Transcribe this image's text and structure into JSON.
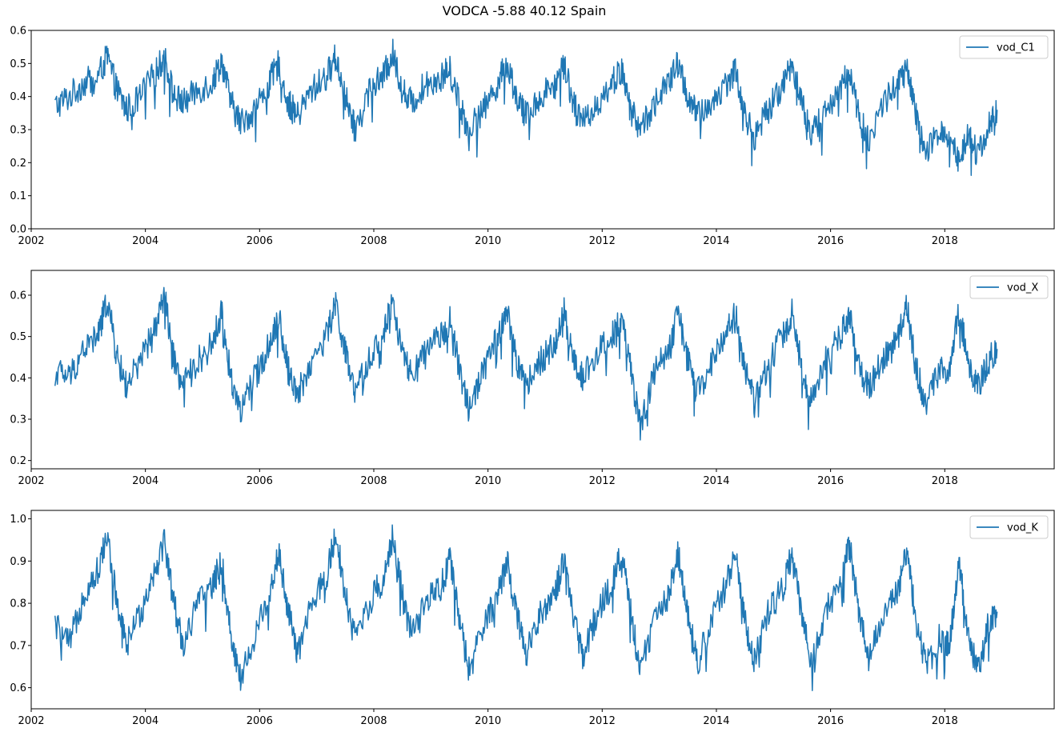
{
  "figure": {
    "title": "VODCA -5.88 40.12 Spain"
  },
  "chart_data": [
    {
      "type": "line",
      "series": [
        {
          "name": "vod_C1",
          "color": "#1f77b4",
          "x": [
            "2002-06",
            "2002-09",
            "2002-12",
            "2003-03",
            "2003-05",
            "2003-07",
            "2003-09",
            "2003-12",
            "2004-03",
            "2004-05",
            "2004-07",
            "2004-09",
            "2004-12",
            "2005-03",
            "2005-05",
            "2005-07",
            "2005-09",
            "2005-12",
            "2006-03",
            "2006-05",
            "2006-07",
            "2006-09",
            "2006-12",
            "2007-03",
            "2007-05",
            "2007-07",
            "2007-09",
            "2007-12",
            "2008-03",
            "2008-05",
            "2008-07",
            "2008-09",
            "2008-12",
            "2009-03",
            "2009-05",
            "2009-07",
            "2009-09",
            "2009-12",
            "2010-03",
            "2010-05",
            "2010-07",
            "2010-09",
            "2010-12",
            "2011-03",
            "2011-05",
            "2011-07",
            "2011-09",
            "2011-12",
            "2012-03",
            "2012-05",
            "2012-07",
            "2012-09",
            "2012-12",
            "2013-03",
            "2013-05",
            "2013-07",
            "2013-09",
            "2013-12",
            "2014-03",
            "2014-05",
            "2014-07",
            "2014-09",
            "2014-12",
            "2015-03",
            "2015-05",
            "2015-07",
            "2015-09",
            "2015-12",
            "2016-03",
            "2016-05",
            "2016-07",
            "2016-09",
            "2016-12",
            "2017-03",
            "2017-05",
            "2017-07",
            "2017-09",
            "2017-12",
            "2018-02",
            "2018-04",
            "2018-06",
            "2018-08",
            "2018-10",
            "2018-12"
          ],
          "y": [
            0.37,
            0.4,
            0.44,
            0.46,
            0.52,
            0.42,
            0.36,
            0.4,
            0.47,
            0.52,
            0.4,
            0.38,
            0.42,
            0.44,
            0.51,
            0.38,
            0.32,
            0.36,
            0.44,
            0.5,
            0.38,
            0.34,
            0.42,
            0.46,
            0.52,
            0.4,
            0.3,
            0.42,
            0.46,
            0.53,
            0.42,
            0.38,
            0.44,
            0.46,
            0.48,
            0.38,
            0.3,
            0.36,
            0.44,
            0.5,
            0.4,
            0.34,
            0.4,
            0.44,
            0.5,
            0.38,
            0.32,
            0.38,
            0.44,
            0.48,
            0.36,
            0.3,
            0.38,
            0.44,
            0.5,
            0.4,
            0.34,
            0.38,
            0.44,
            0.48,
            0.34,
            0.28,
            0.36,
            0.44,
            0.5,
            0.38,
            0.28,
            0.36,
            0.42,
            0.48,
            0.34,
            0.26,
            0.38,
            0.44,
            0.48,
            0.34,
            0.22,
            0.3,
            0.28,
            0.2,
            0.3,
            0.22,
            0.3,
            0.36
          ]
        }
      ],
      "ylim": [
        0.0,
        0.6
      ],
      "yticks": [
        "0.0",
        "0.1",
        "0.2",
        "0.3",
        "0.4",
        "0.5",
        "0.6"
      ],
      "xticks": [
        "2002",
        "2004",
        "2006",
        "2008",
        "2010",
        "2012",
        "2014",
        "2016",
        "2018"
      ],
      "xlim": [
        "2002-01",
        "2019-12"
      ],
      "legend": "top-right",
      "grid": false
    },
    {
      "type": "line",
      "series": [
        {
          "name": "vod_X",
          "color": "#1f77b4",
          "x": [
            "2002-06",
            "2002-09",
            "2002-12",
            "2003-03",
            "2003-05",
            "2003-07",
            "2003-09",
            "2003-12",
            "2004-03",
            "2004-05",
            "2004-07",
            "2004-09",
            "2004-12",
            "2005-03",
            "2005-05",
            "2005-07",
            "2005-09",
            "2005-12",
            "2006-03",
            "2006-05",
            "2006-07",
            "2006-09",
            "2006-12",
            "2007-03",
            "2007-05",
            "2007-07",
            "2007-09",
            "2007-12",
            "2008-03",
            "2008-05",
            "2008-07",
            "2008-09",
            "2008-12",
            "2009-03",
            "2009-05",
            "2009-07",
            "2009-09",
            "2009-12",
            "2010-03",
            "2010-05",
            "2010-07",
            "2010-09",
            "2010-12",
            "2011-03",
            "2011-05",
            "2011-07",
            "2011-09",
            "2011-12",
            "2012-03",
            "2012-05",
            "2012-07",
            "2012-09",
            "2012-12",
            "2013-03",
            "2013-05",
            "2013-07",
            "2013-09",
            "2013-12",
            "2014-03",
            "2014-05",
            "2014-07",
            "2014-09",
            "2014-12",
            "2015-03",
            "2015-05",
            "2015-07",
            "2015-09",
            "2015-12",
            "2016-03",
            "2016-05",
            "2016-07",
            "2016-09",
            "2016-12",
            "2017-03",
            "2017-05",
            "2017-07",
            "2017-09",
            "2017-12",
            "2018-02",
            "2018-04",
            "2018-06",
            "2018-08",
            "2018-10",
            "2018-12"
          ],
          "y": [
            0.42,
            0.4,
            0.47,
            0.5,
            0.59,
            0.45,
            0.38,
            0.44,
            0.52,
            0.6,
            0.44,
            0.38,
            0.44,
            0.48,
            0.56,
            0.4,
            0.32,
            0.4,
            0.48,
            0.55,
            0.42,
            0.36,
            0.44,
            0.5,
            0.58,
            0.46,
            0.36,
            0.44,
            0.52,
            0.58,
            0.46,
            0.4,
            0.46,
            0.5,
            0.54,
            0.42,
            0.32,
            0.42,
            0.5,
            0.56,
            0.44,
            0.38,
            0.44,
            0.48,
            0.56,
            0.44,
            0.4,
            0.46,
            0.5,
            0.54,
            0.42,
            0.28,
            0.42,
            0.46,
            0.56,
            0.44,
            0.36,
            0.44,
            0.5,
            0.56,
            0.42,
            0.34,
            0.44,
            0.5,
            0.56,
            0.42,
            0.34,
            0.44,
            0.5,
            0.56,
            0.42,
            0.38,
            0.44,
            0.5,
            0.58,
            0.42,
            0.34,
            0.42,
            0.42,
            0.56,
            0.44,
            0.38,
            0.44,
            0.47
          ]
        }
      ],
      "ylim": [
        0.18,
        0.66
      ],
      "yticks": [
        "0.2",
        "0.3",
        "0.4",
        "0.5",
        "0.6"
      ],
      "xticks": [
        "2002",
        "2004",
        "2006",
        "2008",
        "2010",
        "2012",
        "2014",
        "2016",
        "2018"
      ],
      "xlim": [
        "2002-01",
        "2019-12"
      ],
      "legend": "top-right",
      "grid": false
    },
    {
      "type": "line",
      "series": [
        {
          "name": "vod_K",
          "color": "#1f77b4",
          "x": [
            "2002-06",
            "2002-09",
            "2002-12",
            "2003-03",
            "2003-05",
            "2003-07",
            "2003-09",
            "2003-12",
            "2004-03",
            "2004-05",
            "2004-07",
            "2004-09",
            "2004-12",
            "2005-03",
            "2005-05",
            "2005-07",
            "2005-09",
            "2005-12",
            "2006-03",
            "2006-05",
            "2006-07",
            "2006-09",
            "2006-12",
            "2007-03",
            "2007-05",
            "2007-07",
            "2007-09",
            "2007-12",
            "2008-03",
            "2008-05",
            "2008-07",
            "2008-09",
            "2008-12",
            "2009-03",
            "2009-05",
            "2009-07",
            "2009-09",
            "2009-12",
            "2010-03",
            "2010-05",
            "2010-07",
            "2010-09",
            "2010-12",
            "2011-03",
            "2011-05",
            "2011-07",
            "2011-09",
            "2011-12",
            "2012-03",
            "2012-05",
            "2012-07",
            "2012-09",
            "2012-12",
            "2013-03",
            "2013-05",
            "2013-07",
            "2013-09",
            "2013-12",
            "2014-03",
            "2014-05",
            "2014-07",
            "2014-09",
            "2014-12",
            "2015-03",
            "2015-05",
            "2015-07",
            "2015-09",
            "2015-12",
            "2016-03",
            "2016-05",
            "2016-07",
            "2016-09",
            "2016-12",
            "2017-03",
            "2017-05",
            "2017-07",
            "2017-09",
            "2017-12",
            "2018-02",
            "2018-04",
            "2018-06",
            "2018-08",
            "2018-10",
            "2018-12"
          ],
          "y": [
            0.75,
            0.7,
            0.82,
            0.88,
            0.96,
            0.8,
            0.7,
            0.78,
            0.88,
            0.95,
            0.8,
            0.7,
            0.8,
            0.84,
            0.9,
            0.72,
            0.62,
            0.72,
            0.82,
            0.92,
            0.78,
            0.68,
            0.8,
            0.86,
            0.97,
            0.82,
            0.72,
            0.8,
            0.86,
            0.96,
            0.82,
            0.72,
            0.8,
            0.84,
            0.9,
            0.76,
            0.64,
            0.74,
            0.82,
            0.9,
            0.78,
            0.68,
            0.78,
            0.82,
            0.9,
            0.76,
            0.68,
            0.78,
            0.84,
            0.92,
            0.78,
            0.64,
            0.76,
            0.82,
            0.92,
            0.78,
            0.66,
            0.76,
            0.84,
            0.92,
            0.76,
            0.66,
            0.78,
            0.84,
            0.92,
            0.76,
            0.66,
            0.78,
            0.84,
            0.94,
            0.78,
            0.66,
            0.78,
            0.82,
            0.92,
            0.76,
            0.66,
            0.72,
            0.7,
            0.9,
            0.72,
            0.64,
            0.74,
            0.78
          ]
        }
      ],
      "ylim": [
        0.55,
        1.02
      ],
      "yticks": [
        "0.6",
        "0.7",
        "0.8",
        "0.9",
        "1.0"
      ],
      "xticks": [
        "2002",
        "2004",
        "2006",
        "2008",
        "2010",
        "2012",
        "2014",
        "2016",
        "2018"
      ],
      "xlim": [
        "2002-01",
        "2019-12"
      ],
      "legend": "top-right",
      "grid": false
    }
  ]
}
